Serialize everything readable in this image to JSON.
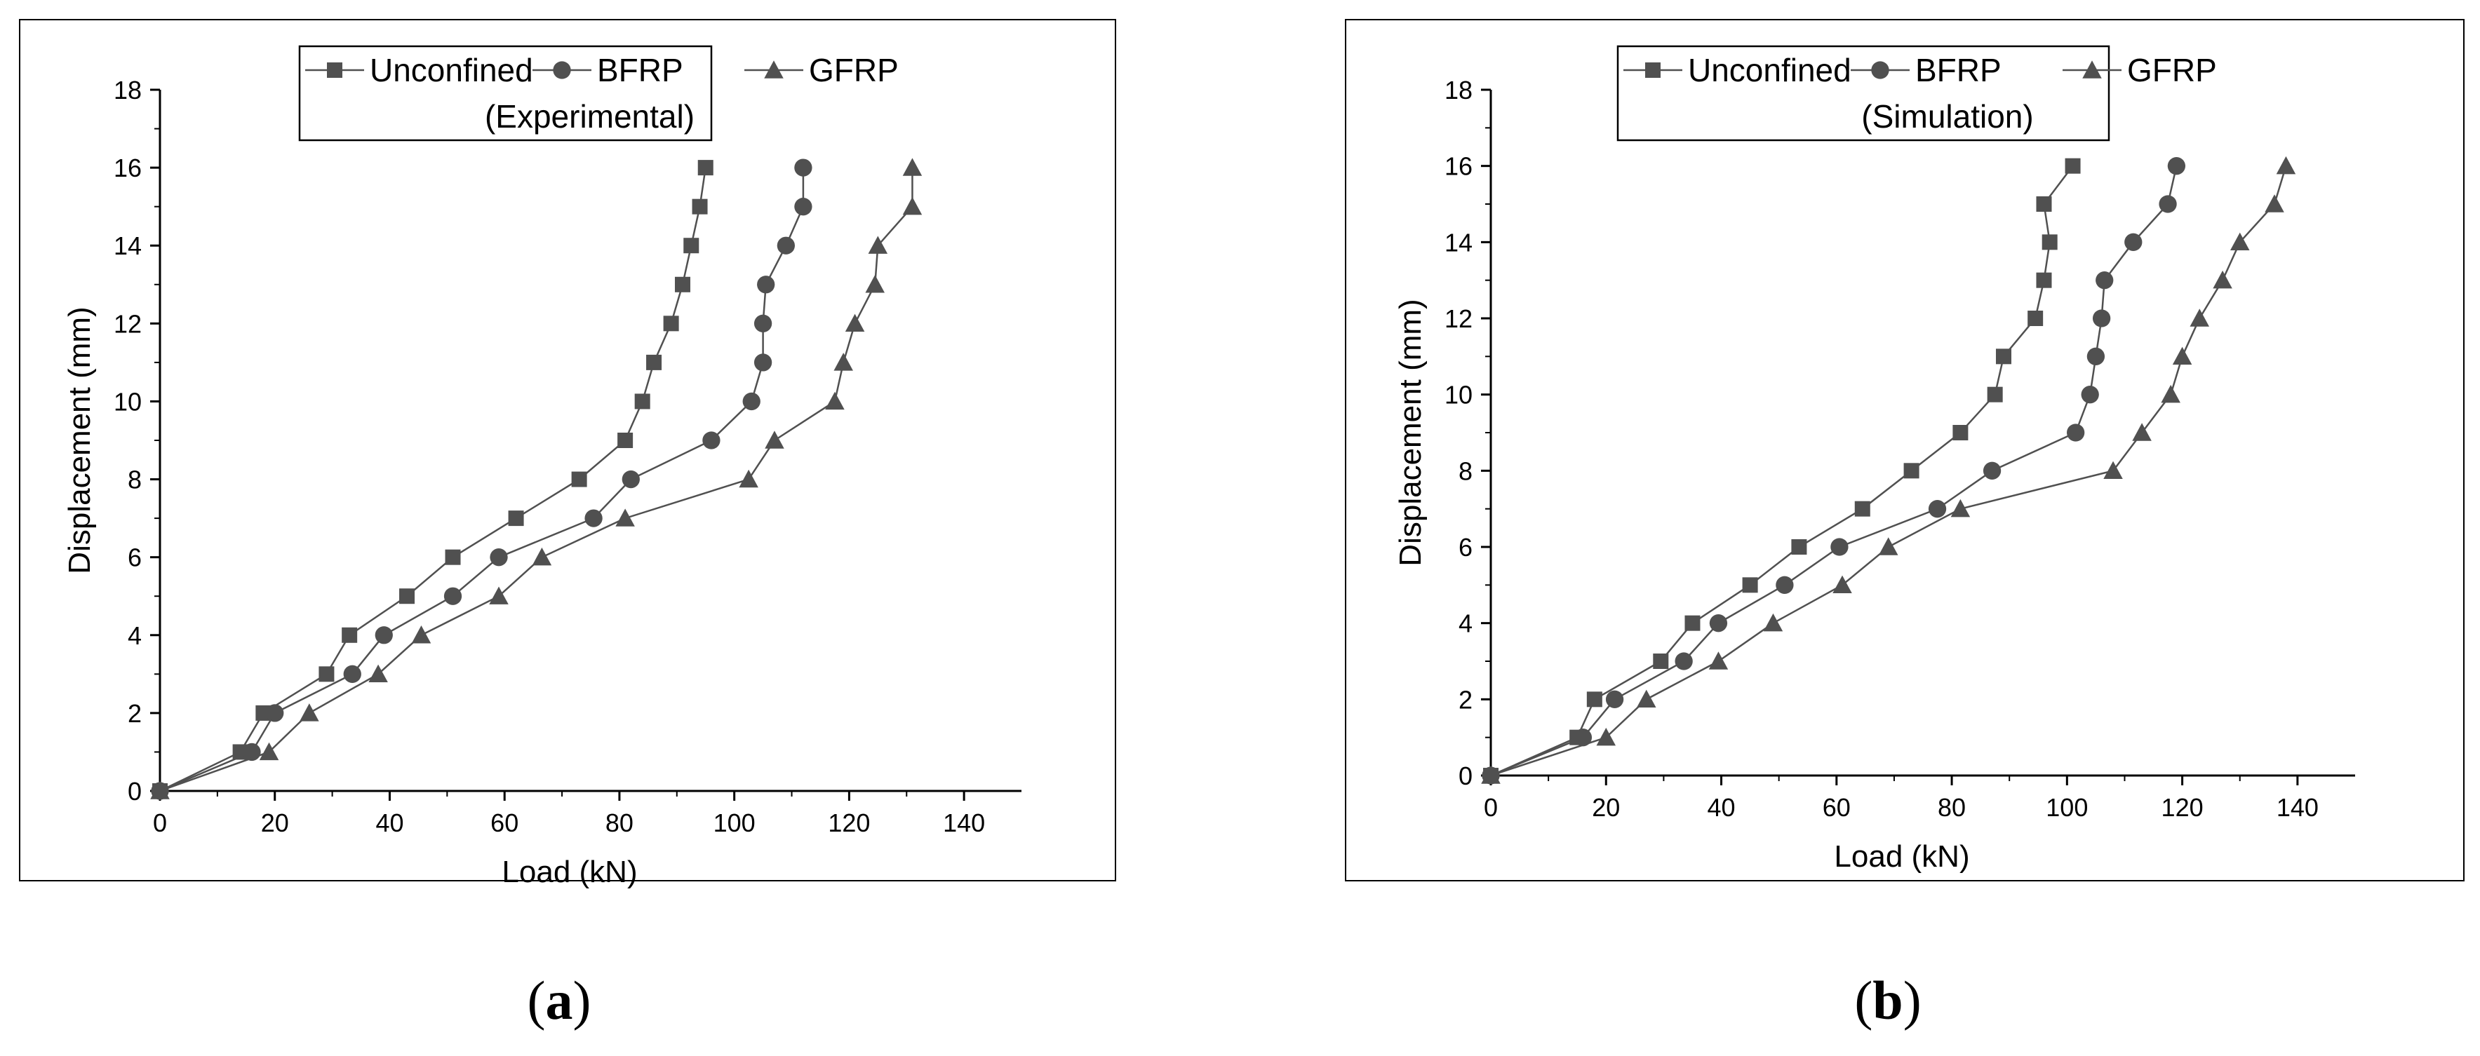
{
  "colors": {
    "series": "#505050",
    "frame": "#000000",
    "background": "#ffffff"
  },
  "chart_data": [
    {
      "type": "line",
      "panel_caption": {
        "open": "(",
        "letter": "a",
        "close": ")"
      },
      "xlabel": "Load (kN)",
      "ylabel": "Displacement (mm)",
      "xlim": [
        0,
        150
      ],
      "ylim": [
        0,
        18
      ],
      "xticks": [
        0,
        20,
        40,
        60,
        80,
        100,
        120,
        140
      ],
      "yticks": [
        0,
        2,
        4,
        6,
        8,
        10,
        12,
        14,
        16,
        18
      ],
      "grid": false,
      "legend": {
        "placement": "top-right",
        "entries": [
          "Unconfined",
          "BFRP",
          "GFRP"
        ],
        "subtitle": "(Experimental)"
      },
      "series": [
        {
          "name": "Unconfined",
          "marker": "square",
          "points": [
            [
              0,
              0
            ],
            [
              14,
              1
            ],
            [
              18,
              2
            ],
            [
              29,
              3
            ],
            [
              33,
              4
            ],
            [
              43,
              5
            ],
            [
              51,
              6
            ],
            [
              62,
              7
            ],
            [
              73,
              8
            ],
            [
              81,
              9
            ],
            [
              84,
              10
            ],
            [
              86,
              11
            ],
            [
              89,
              12
            ],
            [
              91,
              13
            ],
            [
              92.5,
              14
            ],
            [
              94,
              15
            ],
            [
              95,
              16
            ]
          ]
        },
        {
          "name": "BFRP",
          "marker": "circle",
          "points": [
            [
              0,
              0
            ],
            [
              16,
              1
            ],
            [
              20,
              2
            ],
            [
              33.5,
              3
            ],
            [
              39,
              4
            ],
            [
              51,
              5
            ],
            [
              59,
              6
            ],
            [
              75.5,
              7
            ],
            [
              82,
              8
            ],
            [
              96,
              9
            ],
            [
              103,
              10
            ],
            [
              105,
              11
            ],
            [
              105,
              12
            ],
            [
              105.5,
              13
            ],
            [
              109,
              14
            ],
            [
              112,
              15
            ],
            [
              112,
              16
            ]
          ]
        },
        {
          "name": "GFRP",
          "marker": "triangle",
          "points": [
            [
              0,
              0
            ],
            [
              19,
              1
            ],
            [
              26,
              2
            ],
            [
              38,
              3
            ],
            [
              45.5,
              4
            ],
            [
              59,
              5
            ],
            [
              66.5,
              6
            ],
            [
              81,
              7
            ],
            [
              102.5,
              8
            ],
            [
              107,
              9
            ],
            [
              117.5,
              10
            ],
            [
              119,
              11
            ],
            [
              121,
              12
            ],
            [
              124.5,
              13
            ],
            [
              125,
              14
            ],
            [
              131,
              15
            ],
            [
              131,
              16
            ]
          ]
        }
      ]
    },
    {
      "type": "line",
      "panel_caption": {
        "open": "(",
        "letter": "b",
        "close": ")"
      },
      "xlabel": "Load (kN)",
      "ylabel": "Displacement (mm)",
      "xlim": [
        0,
        150
      ],
      "ylim": [
        0,
        18
      ],
      "xticks": [
        0,
        20,
        40,
        60,
        80,
        100,
        120,
        140
      ],
      "yticks": [
        0,
        2,
        4,
        6,
        8,
        10,
        12,
        14,
        16,
        18
      ],
      "grid": false,
      "legend": {
        "placement": "top-right",
        "entries": [
          "Unconfined",
          "BFRP",
          "GFRP"
        ],
        "subtitle": "(Simulation)"
      },
      "series": [
        {
          "name": "Unconfined",
          "marker": "square",
          "points": [
            [
              0,
              0
            ],
            [
              15,
              1
            ],
            [
              18,
              2
            ],
            [
              29.5,
              3
            ],
            [
              35,
              4
            ],
            [
              45,
              5
            ],
            [
              53.5,
              6
            ],
            [
              64.5,
              7
            ],
            [
              73,
              8
            ],
            [
              81.5,
              9
            ],
            [
              87.5,
              10
            ],
            [
              89,
              11
            ],
            [
              94.5,
              12
            ],
            [
              96,
              13
            ],
            [
              97,
              14
            ],
            [
              96,
              15
            ],
            [
              101,
              16
            ]
          ]
        },
        {
          "name": "BFRP",
          "marker": "circle",
          "points": [
            [
              0,
              0
            ],
            [
              16,
              1
            ],
            [
              21.5,
              2
            ],
            [
              33.5,
              3
            ],
            [
              39.5,
              4
            ],
            [
              51,
              5
            ],
            [
              60.5,
              6
            ],
            [
              77.5,
              7
            ],
            [
              87,
              8
            ],
            [
              101.5,
              9
            ],
            [
              104,
              10
            ],
            [
              105,
              11
            ],
            [
              106,
              12
            ],
            [
              106.5,
              13
            ],
            [
              111.5,
              14
            ],
            [
              117.5,
              15
            ],
            [
              119,
              16
            ]
          ]
        },
        {
          "name": "GFRP",
          "marker": "triangle",
          "points": [
            [
              0,
              0
            ],
            [
              20,
              1
            ],
            [
              27,
              2
            ],
            [
              39.5,
              3
            ],
            [
              49,
              4
            ],
            [
              61,
              5
            ],
            [
              69,
              6
            ],
            [
              81.5,
              7
            ],
            [
              108,
              8
            ],
            [
              113,
              9
            ],
            [
              118,
              10
            ],
            [
              120,
              11
            ],
            [
              123,
              12
            ],
            [
              127,
              13
            ],
            [
              130,
              14
            ],
            [
              136,
              15
            ],
            [
              138,
              16
            ]
          ]
        }
      ]
    }
  ]
}
